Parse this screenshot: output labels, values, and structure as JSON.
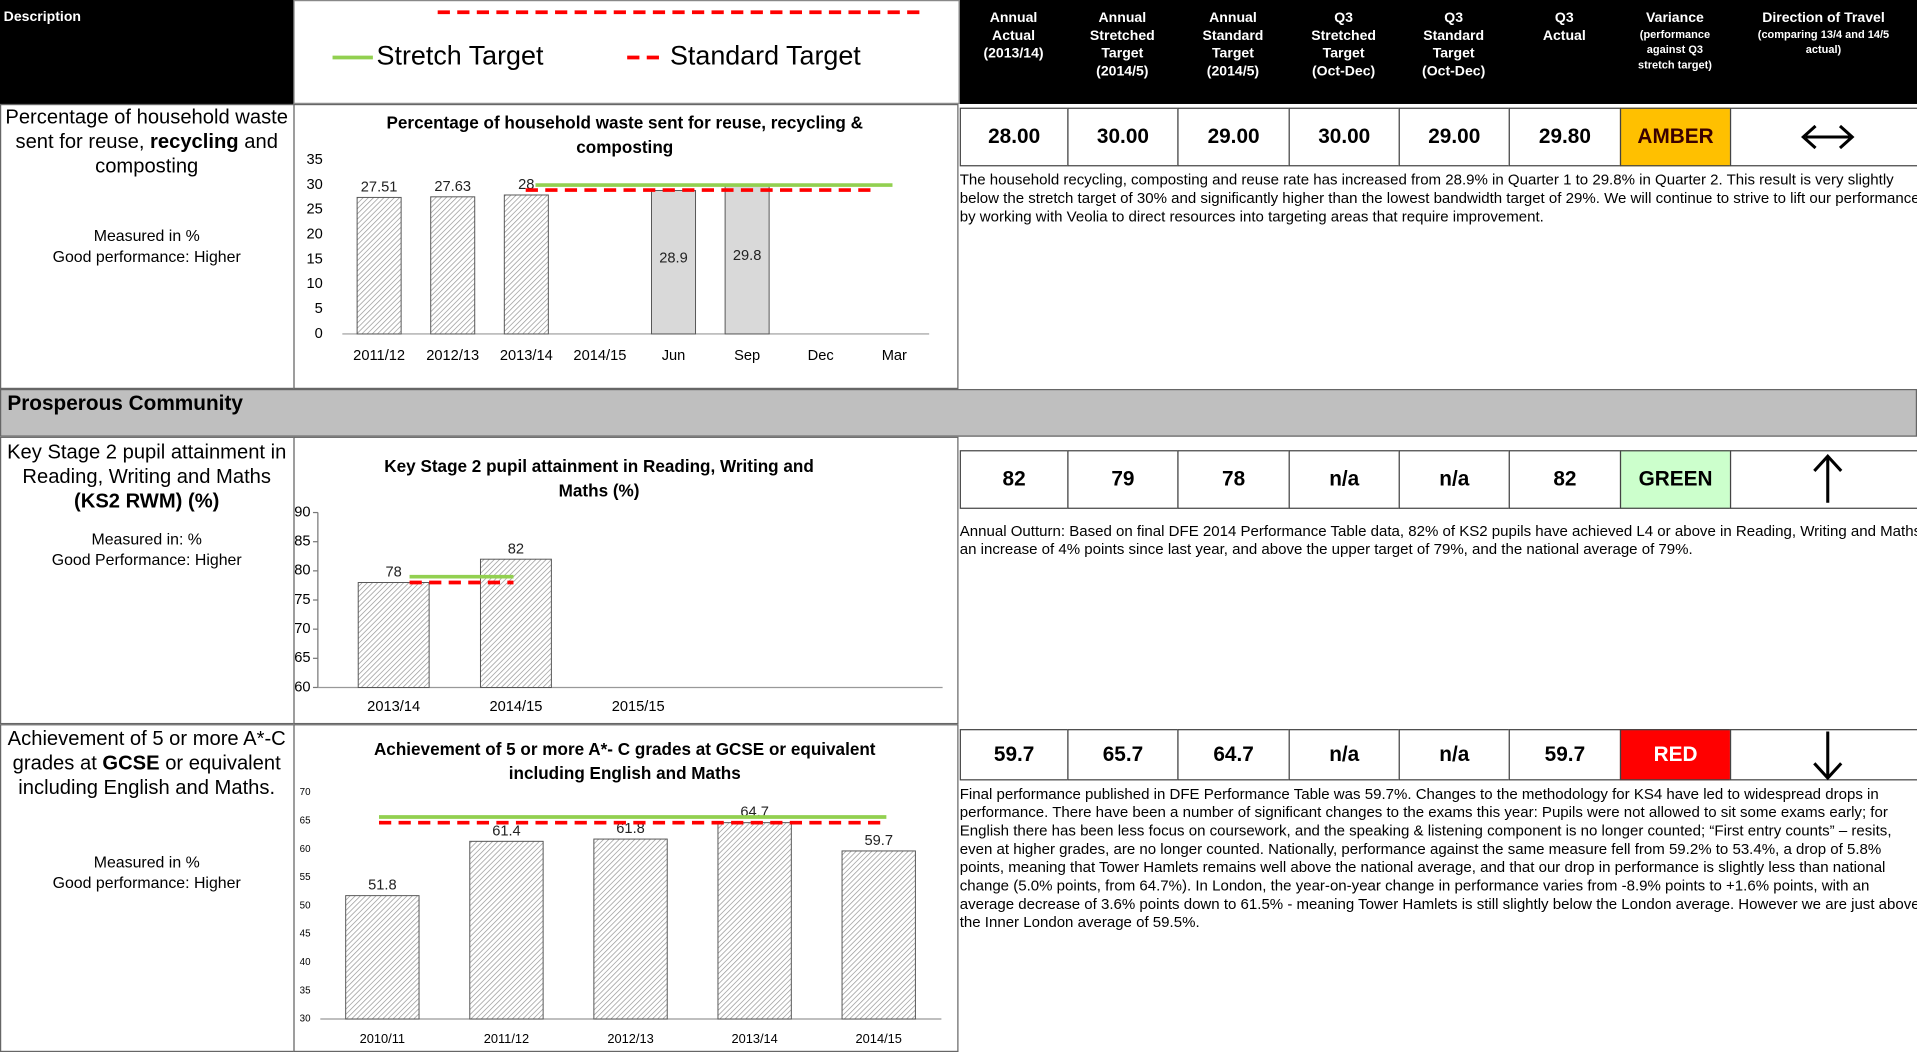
{
  "header": {
    "description": "Description",
    "legend": [
      {
        "name": "Stretch Target",
        "color": "#92d050"
      },
      {
        "name": "Standard Target",
        "color": "#ff0000"
      }
    ],
    "columns": [
      [
        "Annual",
        "Actual",
        "(2013/14)"
      ],
      [
        "Annual",
        "Stretched",
        "Target",
        "(2014/5)"
      ],
      [
        "Annual",
        "Standard",
        "Target",
        "(2014/5)"
      ],
      [
        "Q3",
        "Stretched",
        "Target",
        "(Oct-Dec)"
      ],
      [
        "Q3",
        "Standard",
        "Target",
        "(Oct-Dec)"
      ],
      [
        "Q3",
        "Actual"
      ],
      [
        "Variance",
        "(performance",
        "against Q3",
        "stretch target)"
      ],
      [
        "Direction of Travel",
        "(comparing 13/4 and 14/5",
        "actual)"
      ]
    ]
  },
  "section": "Prosperous Community",
  "indicators": [
    {
      "description": [
        {
          "text": "Percentage of household waste sent for reuse, "
        },
        {
          "text": "recycling",
          "bold": true
        },
        {
          "text": " and composting"
        }
      ],
      "measure": [
        "Measured in %",
        "Good performance: Higher"
      ],
      "chart_data": {
        "type": "bar",
        "title": "Percentage of household waste sent for reuse, recycling & composting",
        "categories": [
          "2011/12",
          "2012/13",
          "2013/14",
          "2014/15",
          "Jun",
          "Sep",
          "Dec",
          "Mar"
        ],
        "values": [
          27.51,
          27.63,
          28,
          null,
          28.9,
          29.8,
          null,
          null
        ],
        "colors": [
          "#ffffff",
          "#ffffff",
          "#ffffff",
          null,
          "#d9d9d9",
          "#d9d9d9",
          null,
          null
        ],
        "stretch_target": 30,
        "standard_target": 29,
        "ylim": [
          0,
          35
        ],
        "yticks": [
          0,
          5,
          10,
          15,
          20,
          25,
          30,
          35
        ]
      },
      "figures": [
        "28.00",
        "30.00",
        "29.00",
        "30.00",
        "29.00",
        "29.80"
      ],
      "status": "AMBER",
      "status_color": "#ffc000",
      "status_text_color": "#3a0000",
      "direction": "both",
      "commentary": "The household recycling, composting and reuse rate has increased from 28.9% in Quarter 1 to 29.8% in Quarter 2. This result is very slightly below the stretch target of 30% and significantly higher than the lowest bandwidth target of 29%. We will continue to strive to lift our performance by working with Veolia to direct resources into targeting areas that require improvement."
    },
    {
      "description": [
        {
          "text": "Key Stage 2 pupil attainment in Reading, Writing and Maths "
        },
        {
          "text": "(KS2 RWM) (%)",
          "bold": true
        }
      ],
      "measure": [
        "Measured in: %",
        "Good Performance: Higher"
      ],
      "chart_data": {
        "type": "bar",
        "title": "Key Stage 2 pupil attainment in Reading, Writing and Maths (%)",
        "categories": [
          "2013/14",
          "2014/15",
          "2015/15"
        ],
        "values": [
          78,
          82,
          null
        ],
        "colors": [
          "#ffffff",
          "#ffffff",
          null
        ],
        "stretch_target": 79,
        "standard_target": 78,
        "ylim": [
          60,
          90
        ],
        "yticks": [
          60,
          65,
          70,
          75,
          80,
          85,
          90
        ]
      },
      "figures": [
        "82",
        "79",
        "78",
        "n/a",
        "n/a",
        "82"
      ],
      "status": "GREEN",
      "status_color": "#ccffcc",
      "status_text_color": "#000000",
      "direction": "up",
      "commentary": "Annual Outturn: Based on final DFE 2014 Performance Table data, 82% of KS2 pupils have achieved L4 or above in Reading, Writing and Maths, an increase of 4% points since last year, and above the upper target of 79%, and the national average of 79%."
    },
    {
      "description": [
        {
          "text": "Achievement of 5 or more A*-C grades at "
        },
        {
          "text": "GCSE",
          "bold": true
        },
        {
          "text": " or equivalent including English and Maths."
        }
      ],
      "measure": [
        "Measured in %",
        "Good performance: Higher"
      ],
      "chart_data": {
        "type": "bar",
        "title": "Achievement of 5 or more A*- C grades at GCSE or equivalent including English and Maths",
        "categories": [
          "2010/11",
          "2011/12",
          "2012/13",
          "2013/14",
          "2014/15"
        ],
        "values": [
          51.8,
          61.4,
          61.8,
          64.7,
          59.7
        ],
        "colors": [
          "#ffffff",
          "#ffffff",
          "#ffffff",
          "#ffffff",
          "#ffffff"
        ],
        "stretch_target": 65.7,
        "standard_target": 64.7,
        "ylim": [
          30,
          70
        ],
        "yticks": [
          30,
          35,
          40,
          45,
          50,
          55,
          60,
          65,
          70
        ]
      },
      "figures": [
        "59.7",
        "65.7",
        "64.7",
        "n/a",
        "n/a",
        "59.7"
      ],
      "status": "RED",
      "status_color": "#ff0000",
      "status_text_color": "#ffffff",
      "direction": "down",
      "commentary": "Final performance published in DFE Performance Table was 59.7%. Changes to the methodology for KS4 have led to widespread drops in performance. There have been a number of significant changes to the exams this year: Pupils were not allowed to sit some exams early; for English there has been less focus on coursework, and the speaking & listening component is no longer counted; “First entry counts” – resits, even at higher grades, are no longer counted. Nationally, performance against the same measure fell from 59.2% to 53.4%, a drop of 5.8% points, meaning that Tower Hamlets remains well above the national average, and that our drop in performance is slightly less than national change (5.0% points, from 64.7%). In London, the year-on-year change in performance varies from -8.9% points to +1.6% points, with an average decrease of 3.6% points down to 61.5% - meaning Tower Hamlets is still slightly below the London average. However we are just above the Inner London average of 59.5%."
    }
  ]
}
